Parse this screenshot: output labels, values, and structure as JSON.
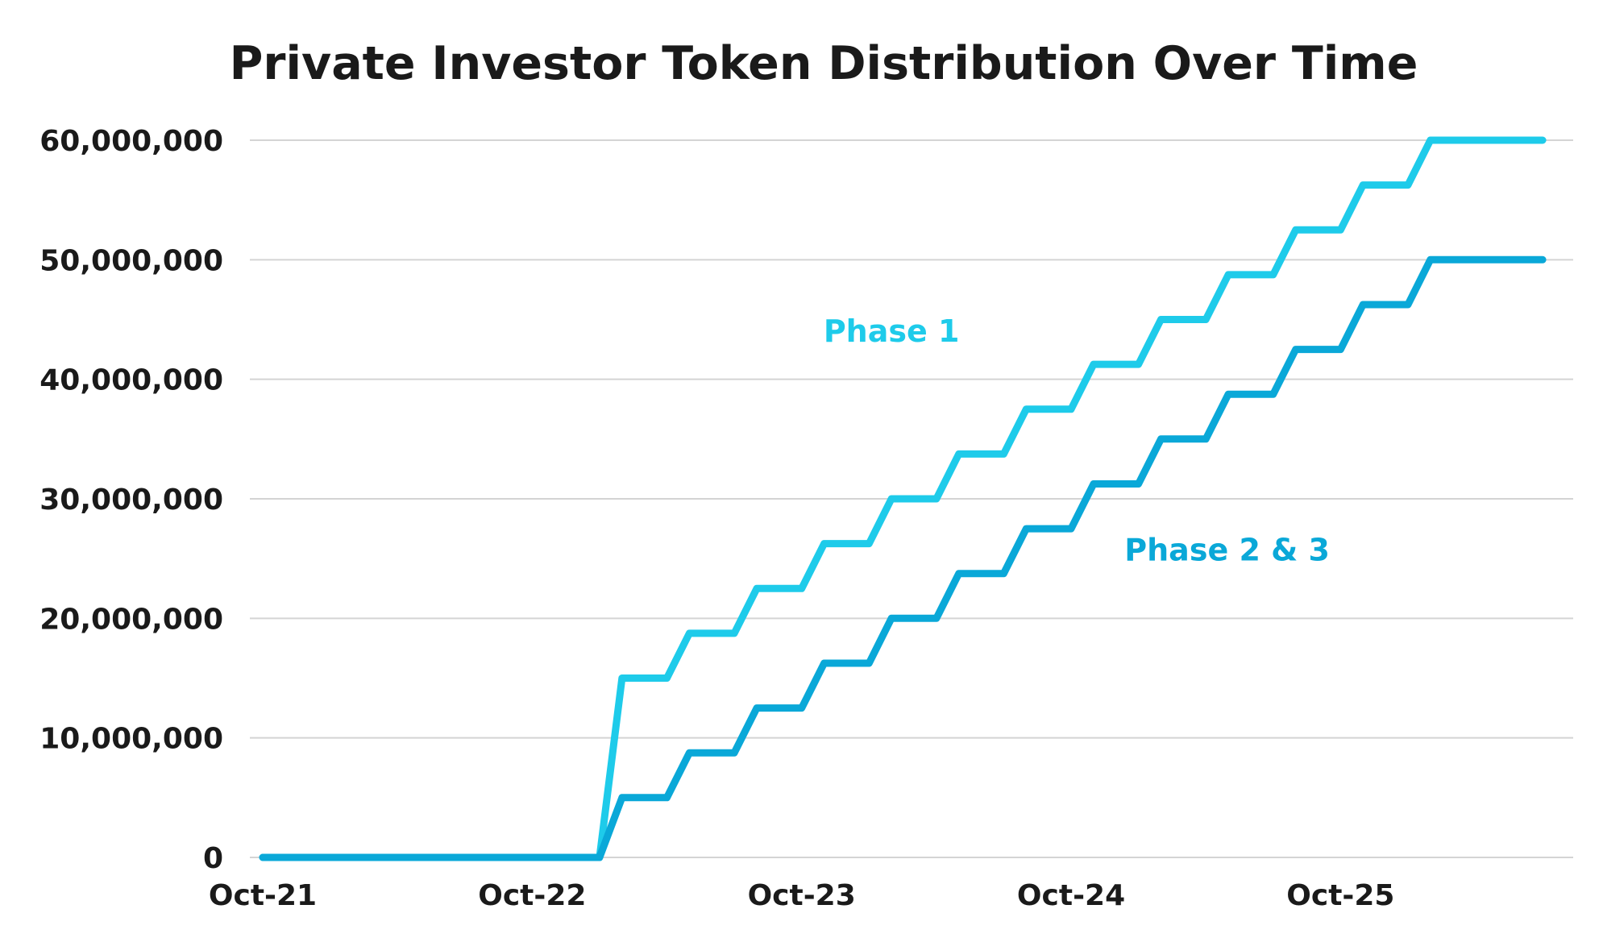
{
  "chart_data": {
    "type": "line",
    "title": "Private Investor Token Distribution Over Time",
    "xlabel": "",
    "ylabel": "",
    "ylim": [
      0,
      60000000
    ],
    "yticks": [
      0,
      10000000,
      20000000,
      30000000,
      40000000,
      50000000,
      60000000
    ],
    "ytick_labels": [
      "0",
      "10,000,000",
      "20,000,000",
      "30,000,000",
      "40,000,000",
      "50,000,000",
      "60,000,000"
    ],
    "xlim": [
      "2021-10",
      "2026-08"
    ],
    "xtick_labels": [
      "Oct-21",
      "Oct-22",
      "Oct-23",
      "Oct-24",
      "Oct-25"
    ],
    "xticks": [
      "2021-10",
      "2022-10",
      "2023-10",
      "2024-10",
      "2025-10"
    ],
    "grid": true,
    "legend": "none",
    "series": [
      {
        "name": "Phase 1",
        "color": "#1ecbea",
        "label_position": "above",
        "points": [
          {
            "x": "2021-10",
            "y": 0
          },
          {
            "x": "2023-01",
            "y": 0
          },
          {
            "x": "2023-02",
            "y": 15000000
          },
          {
            "x": "2023-04",
            "y": 15000000
          },
          {
            "x": "2023-05",
            "y": 18750000
          },
          {
            "x": "2023-07",
            "y": 18750000
          },
          {
            "x": "2023-08",
            "y": 22500000
          },
          {
            "x": "2023-10",
            "y": 22500000
          },
          {
            "x": "2023-11",
            "y": 26250000
          },
          {
            "x": "2024-01",
            "y": 26250000
          },
          {
            "x": "2024-02",
            "y": 30000000
          },
          {
            "x": "2024-04",
            "y": 30000000
          },
          {
            "x": "2024-05",
            "y": 33750000
          },
          {
            "x": "2024-07",
            "y": 33750000
          },
          {
            "x": "2024-08",
            "y": 37500000
          },
          {
            "x": "2024-10",
            "y": 37500000
          },
          {
            "x": "2024-11",
            "y": 41250000
          },
          {
            "x": "2025-01",
            "y": 41250000
          },
          {
            "x": "2025-02",
            "y": 45000000
          },
          {
            "x": "2025-04",
            "y": 45000000
          },
          {
            "x": "2025-05",
            "y": 48750000
          },
          {
            "x": "2025-07",
            "y": 48750000
          },
          {
            "x": "2025-08",
            "y": 52500000
          },
          {
            "x": "2025-10",
            "y": 52500000
          },
          {
            "x": "2025-11",
            "y": 56250000
          },
          {
            "x": "2026-01",
            "y": 56250000
          },
          {
            "x": "2026-02",
            "y": 60000000
          },
          {
            "x": "2026-07",
            "y": 60000000
          }
        ]
      },
      {
        "name": "Phase 2 & 3",
        "color": "#0aa8d8",
        "label_position": "below",
        "points": [
          {
            "x": "2021-10",
            "y": 0
          },
          {
            "x": "2023-01",
            "y": 0
          },
          {
            "x": "2023-02",
            "y": 5000000
          },
          {
            "x": "2023-04",
            "y": 5000000
          },
          {
            "x": "2023-05",
            "y": 8750000
          },
          {
            "x": "2023-07",
            "y": 8750000
          },
          {
            "x": "2023-08",
            "y": 12500000
          },
          {
            "x": "2023-10",
            "y": 12500000
          },
          {
            "x": "2023-11",
            "y": 16250000
          },
          {
            "x": "2024-01",
            "y": 16250000
          },
          {
            "x": "2024-02",
            "y": 20000000
          },
          {
            "x": "2024-04",
            "y": 20000000
          },
          {
            "x": "2024-05",
            "y": 23750000
          },
          {
            "x": "2024-07",
            "y": 23750000
          },
          {
            "x": "2024-08",
            "y": 27500000
          },
          {
            "x": "2024-10",
            "y": 27500000
          },
          {
            "x": "2024-11",
            "y": 31250000
          },
          {
            "x": "2025-01",
            "y": 31250000
          },
          {
            "x": "2025-02",
            "y": 35000000
          },
          {
            "x": "2025-04",
            "y": 35000000
          },
          {
            "x": "2025-05",
            "y": 38750000
          },
          {
            "x": "2025-07",
            "y": 38750000
          },
          {
            "x": "2025-08",
            "y": 42500000
          },
          {
            "x": "2025-10",
            "y": 42500000
          },
          {
            "x": "2025-11",
            "y": 46250000
          },
          {
            "x": "2026-01",
            "y": 46250000
          },
          {
            "x": "2026-02",
            "y": 50000000
          },
          {
            "x": "2026-07",
            "y": 50000000
          }
        ]
      }
    ]
  },
  "colors": {
    "grid": "#d4d4d4",
    "text": "#1a1a1a",
    "background": "#ffffff"
  }
}
